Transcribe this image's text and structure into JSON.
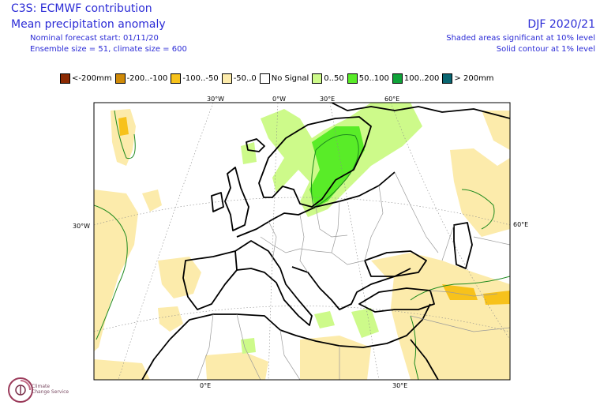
{
  "header": {
    "title_line1": "C3S: ECMWF contribution",
    "title_line2": "Mean precipitation anomaly",
    "forecast_start": "Nominal forecast start: 01/11/20",
    "ensemble": "Ensemble size = 51, climate size = 600",
    "season": "DJF 2020/21",
    "significance_shaded": "Shaded areas significant at 10% level",
    "significance_contour": "Solid contour at 1% level"
  },
  "legend": [
    {
      "label": "<-200mm",
      "color": "#8b2a02"
    },
    {
      "label": "-200..-100",
      "color": "#cf8a08"
    },
    {
      "label": "-100..-50",
      "color": "#f7c21b"
    },
    {
      "label": "-50..0",
      "color": "#fcebab"
    },
    {
      "label": "No Signal",
      "color": "#ffffff"
    },
    {
      "label": "0..50",
      "color": "#cdfa8a"
    },
    {
      "label": "50..100",
      "color": "#59ec28"
    },
    {
      "label": "100..200",
      "color": "#10a339"
    },
    {
      "label": "> 200mm",
      "color": "#0a6671"
    }
  ],
  "map": {
    "top_lon_labels": [
      "30°W",
      "0°W",
      "30°E",
      "60°E"
    ],
    "bottom_lon_labels": [
      "0°E",
      "30°E"
    ],
    "left_lat_label": "30°W",
    "right_lat_label": "60°E"
  },
  "logo": {
    "line1": "Climate",
    "line2": "Change Service"
  }
}
